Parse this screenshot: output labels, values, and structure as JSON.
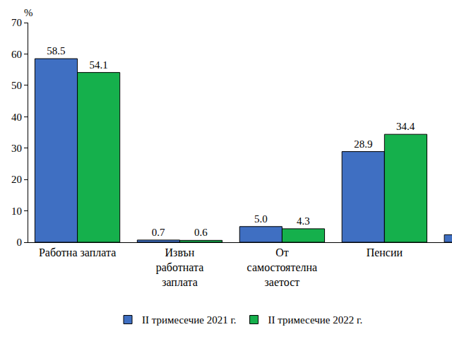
{
  "chart_data": {
    "type": "bar",
    "y_label": "%",
    "categories": [
      "Работна заплата",
      "Извън\nработната\nзаплата",
      "От\nсамостоятелна\nзаетост",
      "Пенсии",
      null
    ],
    "series": [
      {
        "name": "II тримесечие 2021 г.",
        "color": "#3f6fc2",
        "values": [
          58.5,
          0.7,
          5.0,
          28.9,
          2.4
        ],
        "value_labels": [
          "58.5",
          "0.7",
          "5.0",
          "28.9",
          null
        ]
      },
      {
        "name": "II тримесечие 2022 г.",
        "color": "#15b04c",
        "values": [
          54.1,
          0.6,
          4.3,
          34.4,
          null
        ],
        "value_labels": [
          "54.1",
          "0.6",
          "4.3",
          "34.4",
          null
        ]
      }
    ],
    "ylim": [
      0,
      70
    ],
    "yticks": [
      0,
      10,
      20,
      30,
      40,
      50,
      60,
      70
    ],
    "grid": false,
    "data_labels": true,
    "legend": "bottom"
  }
}
